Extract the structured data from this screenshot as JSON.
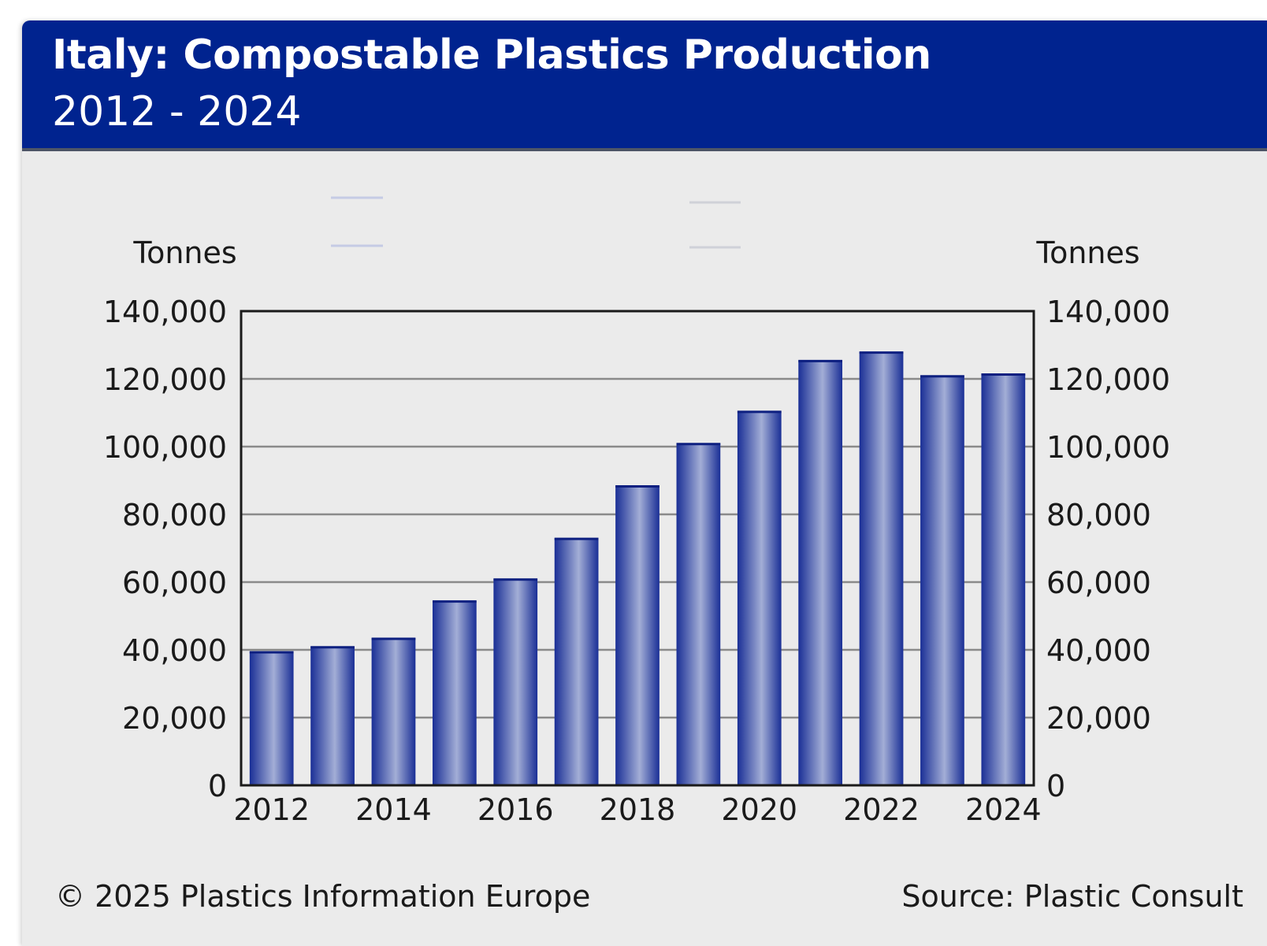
{
  "header": {
    "title": "Italy: Compostable Plastics Production",
    "subtitle": "2012 - 2024"
  },
  "footer": {
    "copyright": "© 2025 Plastics Information Europe",
    "source": "Source: Plastic Consult"
  },
  "colors": {
    "header_bg": "#00238f",
    "panel_bg": "#ebebeb",
    "bar_dark": "#1a2f96",
    "bar_light": "#a3aed6"
  },
  "chart_data": {
    "type": "bar",
    "title": "Italy: Compostable Plastics Production",
    "subtitle": "2012 - 2024",
    "ylabel_left": "Tonnes",
    "ylabel_right": "Tonnes",
    "categories": [
      "2012",
      "2013",
      "2014",
      "2015",
      "2016",
      "2017",
      "2018",
      "2019",
      "2020",
      "2021",
      "2022",
      "2023",
      "2024"
    ],
    "x_tick_labels": [
      "2012",
      "2014",
      "2016",
      "2018",
      "2020",
      "2022",
      "2024"
    ],
    "values": [
      39500,
      41000,
      43500,
      54500,
      61000,
      73000,
      88500,
      101000,
      110500,
      125500,
      128000,
      121000,
      121500
    ],
    "ylim": [
      0,
      140000
    ],
    "y_ticks": [
      0,
      20000,
      40000,
      60000,
      80000,
      100000,
      120000,
      140000
    ],
    "y_tick_labels": [
      "0",
      "20,000",
      "40,000",
      "60,000",
      "80,000",
      "100,000",
      "120,000",
      "140,000"
    ],
    "grid": true
  }
}
